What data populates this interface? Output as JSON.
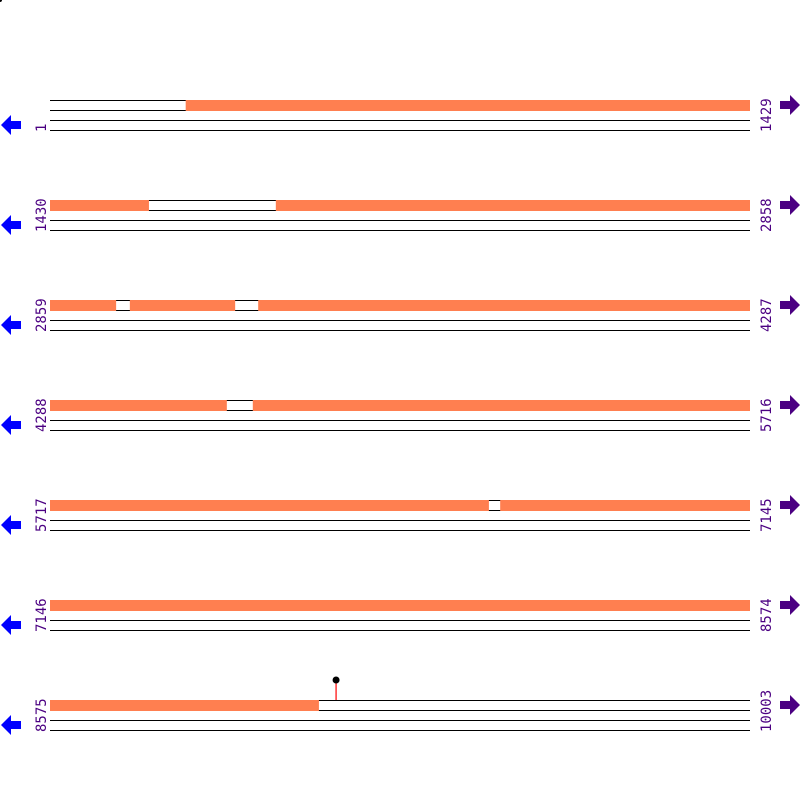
{
  "colors": {
    "feature": "#ff7f50",
    "line": "#000000",
    "left_arrow": "#0000ff",
    "right_arrow": "#4b0082",
    "label": "#4b0082",
    "marker_stem": "#ff0000",
    "marker_head": "#000000"
  },
  "icons": {
    "left": "arrow-left-icon",
    "right": "arrow-right-icon"
  },
  "rows": [
    {
      "start": "1",
      "end": "1429",
      "s": 1,
      "e": 1429,
      "features": [
        [
          278,
          1429
        ]
      ]
    },
    {
      "start": "1430",
      "end": "2858",
      "s": 1430,
      "e": 2858,
      "features": [
        [
          1430,
          1632
        ],
        [
          1891,
          2858
        ]
      ]
    },
    {
      "start": "2859",
      "end": "4287",
      "s": 2859,
      "e": 4287,
      "features": [
        [
          2859,
          2994
        ],
        [
          3022,
          3237
        ],
        [
          3284,
          4287
        ]
      ]
    },
    {
      "start": "4288",
      "end": "5716",
      "s": 4288,
      "e": 5716,
      "features": [
        [
          4288,
          4649
        ],
        [
          4702,
          5716
        ]
      ]
    },
    {
      "start": "5717",
      "end": "7145",
      "s": 5717,
      "e": 7145,
      "features": [
        [
          5717,
          6613
        ],
        [
          6636,
          7145
        ]
      ]
    },
    {
      "start": "7146",
      "end": "8574",
      "s": 7146,
      "e": 8574,
      "features": [
        [
          7146,
          8574
        ]
      ]
    },
    {
      "start": "8575",
      "end": "10003",
      "s": 8575,
      "e": 10003,
      "features": [
        [
          8575,
          9124
        ]
      ],
      "markers": [
        9159
      ]
    }
  ]
}
